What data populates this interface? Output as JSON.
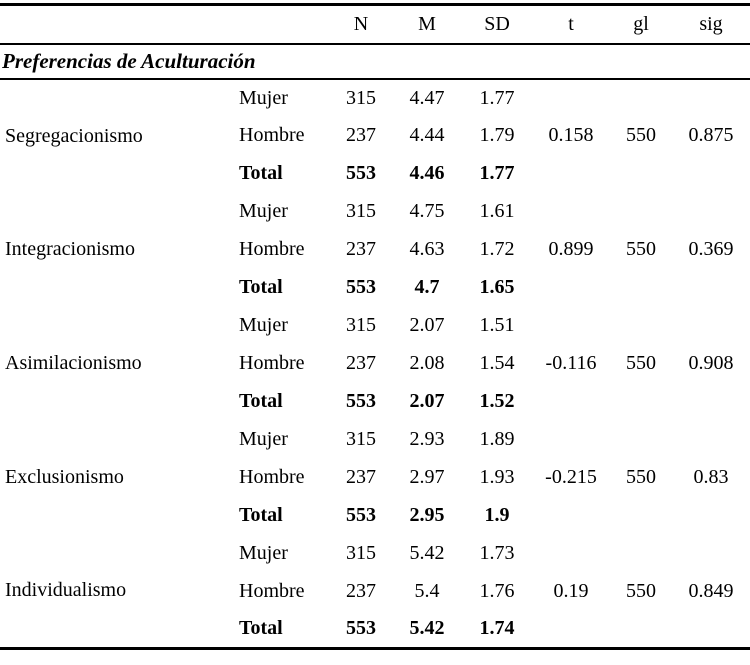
{
  "table": {
    "header": {
      "n": "N",
      "m": "M",
      "sd": "SD",
      "t": "t",
      "gl": "gl",
      "sig": "sig"
    },
    "section_title": "Preferencias de Aculturación",
    "factors": [
      {
        "name": "Segregacionismo",
        "rows": [
          {
            "group": "Mujer",
            "n": "315",
            "m": "4.47",
            "sd": "1.77",
            "t": "",
            "gl": "",
            "sig": ""
          },
          {
            "group": "Hombre",
            "n": "237",
            "m": "4.44",
            "sd": "1.79",
            "t": "0.158",
            "gl": "550",
            "sig": "0.875"
          },
          {
            "group": "Total",
            "n": "553",
            "m": "4.46",
            "sd": "1.77",
            "t": "",
            "gl": "",
            "sig": ""
          }
        ]
      },
      {
        "name": "Integracionismo",
        "rows": [
          {
            "group": "Mujer",
            "n": "315",
            "m": "4.75",
            "sd": "1.61",
            "t": "",
            "gl": "",
            "sig": ""
          },
          {
            "group": "Hombre",
            "n": "237",
            "m": "4.63",
            "sd": "1.72",
            "t": "0.899",
            "gl": "550",
            "sig": "0.369"
          },
          {
            "group": "Total",
            "n": "553",
            "m": "4.7",
            "sd": "1.65",
            "t": "",
            "gl": "",
            "sig": ""
          }
        ]
      },
      {
        "name": "Asimilacionismo",
        "rows": [
          {
            "group": "Mujer",
            "n": "315",
            "m": "2.07",
            "sd": "1.51",
            "t": "",
            "gl": "",
            "sig": ""
          },
          {
            "group": "Hombre",
            "n": "237",
            "m": "2.08",
            "sd": "1.54",
            "t": "-0.116",
            "gl": "550",
            "sig": "0.908"
          },
          {
            "group": "Total",
            "n": "553",
            "m": "2.07",
            "sd": "1.52",
            "t": "",
            "gl": "",
            "sig": ""
          }
        ]
      },
      {
        "name": "Exclusionismo",
        "rows": [
          {
            "group": "Mujer",
            "n": "315",
            "m": "2.93",
            "sd": "1.89",
            "t": "",
            "gl": "",
            "sig": ""
          },
          {
            "group": "Hombre",
            "n": "237",
            "m": "2.97",
            "sd": "1.93",
            "t": "-0.215",
            "gl": "550",
            "sig": "0.83"
          },
          {
            "group": "Total",
            "n": "553",
            "m": "2.95",
            "sd": "1.9",
            "t": "",
            "gl": "",
            "sig": ""
          }
        ]
      },
      {
        "name": "Individualismo",
        "rows": [
          {
            "group": "Mujer",
            "n": "315",
            "m": "5.42",
            "sd": "1.73",
            "t": "",
            "gl": "",
            "sig": ""
          },
          {
            "group": "Hombre",
            "n": "237",
            "m": "5.4",
            "sd": "1.76",
            "t": "0.19",
            "gl": "550",
            "sig": "0.849"
          },
          {
            "group": "Total",
            "n": "553",
            "m": "5.42",
            "sd": "1.74",
            "t": "",
            "gl": "",
            "sig": ""
          }
        ]
      }
    ]
  }
}
